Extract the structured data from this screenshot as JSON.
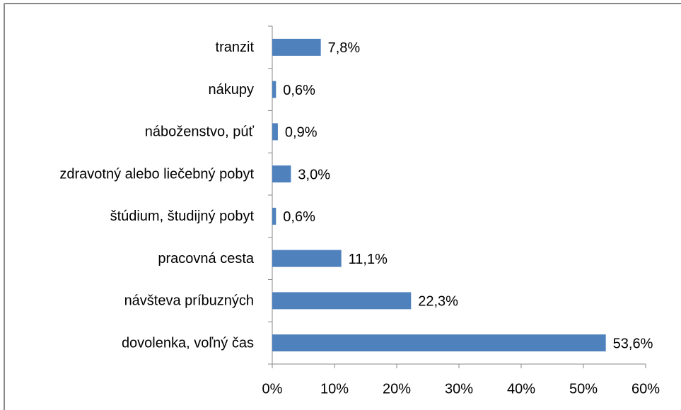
{
  "chart_data": {
    "type": "barh",
    "categories": [
      "tranzit",
      "nákupy",
      "náboženstvo, púť",
      "zdravotný alebo liečebný pobyt",
      "štúdium, študijný pobyt",
      "pracovná cesta",
      "návšteva príbuzných",
      "dovolenka, voľný čas"
    ],
    "values": [
      7.8,
      0.6,
      0.9,
      3.0,
      0.6,
      11.1,
      22.3,
      53.6
    ],
    "value_labels": [
      "7,8%",
      "0,6%",
      "0,9%",
      "3,0%",
      "0,6%",
      "11,1%",
      "22,3%",
      "53,6%"
    ],
    "color": "#4f81bd",
    "xlim": [
      0,
      60
    ],
    "xticks": [
      {
        "value": 0,
        "label": "0%"
      },
      {
        "value": 10,
        "label": "10%"
      },
      {
        "value": 20,
        "label": "20%"
      },
      {
        "value": 30,
        "label": "30%"
      },
      {
        "value": 40,
        "label": "40%"
      },
      {
        "value": 50,
        "label": "50%"
      },
      {
        "value": 60,
        "label": "60%"
      }
    ]
  }
}
